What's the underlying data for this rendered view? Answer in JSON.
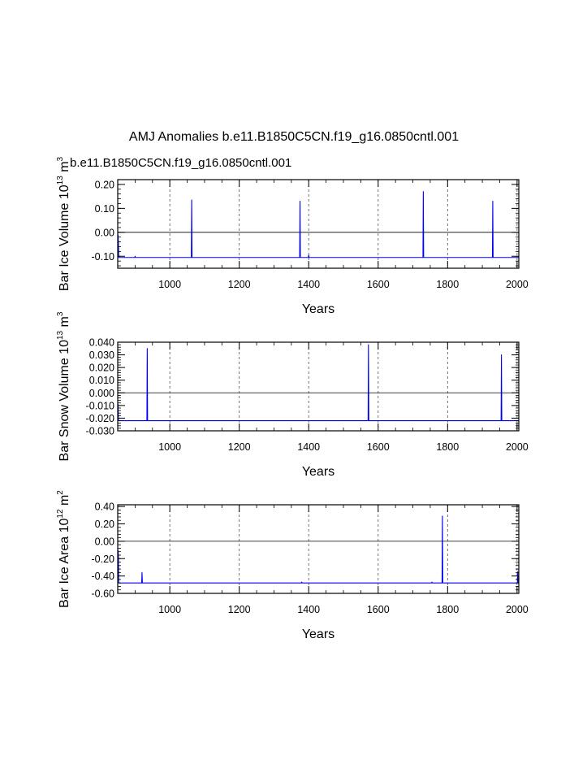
{
  "figure": {
    "main_title": "AMJ Anomalies b.e11.B1850C5CN.f19_g16.0850cntl.001",
    "case_label": "b.e11.B1850C5CN.f19_g16.0850cntl.001",
    "case_color": "#0000ee"
  },
  "chart_data": [
    {
      "type": "line",
      "ylabel": "Bar Ice Volume 10",
      "ylabel_exp": "13",
      "ylabel_unit": " m",
      "ylabel_unit_exp": "3",
      "xlabel": "Years",
      "xlim": [
        850,
        2005
      ],
      "ylim": [
        -0.15,
        0.22
      ],
      "yticks": [
        -0.1,
        0.0,
        0.1,
        0.2
      ],
      "ytick_labels": [
        "-0.10",
        "0.00",
        "0.10",
        "0.20"
      ],
      "yminor": 0.02,
      "xticks": [
        1000,
        1200,
        1400,
        1600,
        1800,
        2000
      ],
      "xtick_labels": [
        "1000",
        "1200",
        "1400",
        "1600",
        "1800",
        "2000"
      ],
      "gridlines_x": [
        1000,
        1200,
        1400,
        1600,
        1800,
        2000
      ],
      "series": {
        "name": "b.e11.B1850C5CN.f19_g16.0850cntl.001",
        "x_start": 851,
        "x_end": 2005,
        "std": 0.038,
        "min": -0.105,
        "max": 0.17,
        "seed": 11,
        "peaks": [
          [
            1063,
            0.135
          ],
          [
            1730,
            0.17
          ],
          [
            1375,
            0.13
          ],
          [
            1930,
            0.13
          ],
          [
            1400,
            -0.095
          ],
          [
            900,
            -0.1
          ]
        ]
      }
    },
    {
      "type": "line",
      "ylabel": "Bar Snow Volume 10",
      "ylabel_exp": "13",
      "ylabel_unit": " m",
      "ylabel_unit_exp": "3",
      "xlabel": "Years",
      "xlim": [
        850,
        2005
      ],
      "ylim": [
        -0.03,
        0.04
      ],
      "yticks": [
        -0.03,
        -0.02,
        -0.01,
        0.0,
        0.01,
        0.02,
        0.03,
        0.04
      ],
      "ytick_labels": [
        "-0.030",
        "-0.020",
        "-0.010",
        "0.000",
        "0.010",
        "0.020",
        "0.030",
        "0.040"
      ],
      "yminor": 0.002,
      "xticks": [
        1000,
        1200,
        1400,
        1600,
        1800,
        2000
      ],
      "xtick_labels": [
        "1000",
        "1200",
        "1400",
        "1600",
        "1800",
        "2000"
      ],
      "gridlines_x": [
        1000,
        1200,
        1400,
        1600,
        1800,
        2000
      ],
      "series": {
        "name": "b.e11.B1850C5CN.f19_g16.0850cntl.001",
        "x_start": 851,
        "x_end": 2005,
        "std": 0.0085,
        "min": -0.022,
        "max": 0.038,
        "seed": 23,
        "peaks": [
          [
            935,
            0.035
          ],
          [
            1572,
            0.038
          ],
          [
            1955,
            0.03
          ],
          [
            1540,
            -0.022
          ],
          [
            1810,
            -0.022
          ]
        ]
      }
    },
    {
      "type": "line",
      "ylabel": "Bar Ice Area 10",
      "ylabel_exp": "12",
      "ylabel_unit": " m",
      "ylabel_unit_exp": "2",
      "xlabel": "Years",
      "xlim": [
        850,
        2005
      ],
      "ylim": [
        -0.6,
        0.42
      ],
      "yticks": [
        -0.6,
        -0.4,
        -0.2,
        0.0,
        0.2,
        0.4
      ],
      "ytick_labels": [
        "-0.60",
        "-0.40",
        "-0.20",
        "0.00",
        "0.20",
        "0.40"
      ],
      "yminor": 0.04,
      "xticks": [
        1000,
        1200,
        1400,
        1600,
        1800,
        2000
      ],
      "xtick_labels": [
        "1000",
        "1200",
        "1400",
        "1600",
        "1800",
        "2000"
      ],
      "gridlines_x": [
        1000,
        1200,
        1400,
        1600,
        1800,
        2000
      ],
      "series": {
        "name": "b.e11.B1850C5CN.f19_g16.0850cntl.001",
        "x_start": 851,
        "x_end": 2005,
        "std": 0.1,
        "min": -0.48,
        "max": 0.29,
        "seed": 37,
        "peaks": [
          [
            1380,
            -0.47
          ],
          [
            1755,
            -0.47
          ],
          [
            920,
            -0.36
          ],
          [
            1785,
            0.29
          ],
          [
            2002,
            -0.35
          ]
        ]
      }
    }
  ]
}
